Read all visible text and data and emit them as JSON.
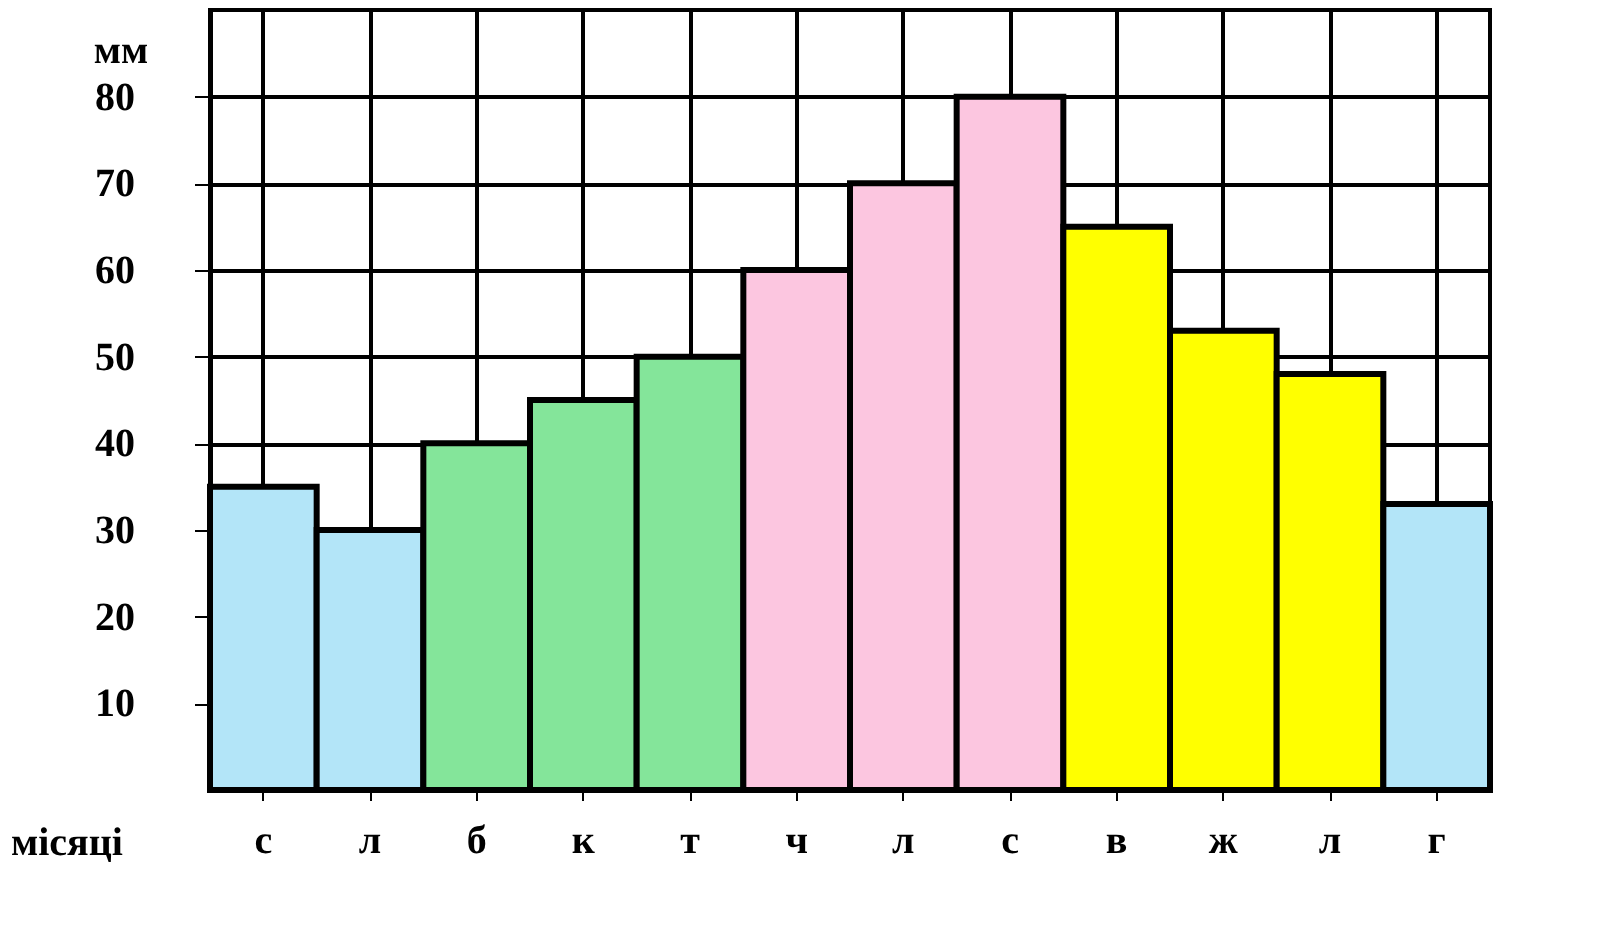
{
  "chart_data": {
    "type": "bar",
    "ylabel": "мм",
    "xlabel": "місяці",
    "categories": [
      "с",
      "л",
      "б",
      "к",
      "т",
      "ч",
      "л",
      "с",
      "в",
      "ж",
      "л",
      "г"
    ],
    "values": [
      35,
      30,
      40,
      45,
      50,
      60,
      70,
      80,
      65,
      53,
      48,
      33
    ],
    "colors": [
      "#b3e5f8",
      "#b3e5f8",
      "#84e59a",
      "#84e59a",
      "#84e59a",
      "#fcc6e0",
      "#fcc6e0",
      "#fcc6e0",
      "#ffff00",
      "#ffff00",
      "#ffff00",
      "#b3e5f8"
    ],
    "ylim": [
      0,
      90
    ],
    "yticks": [
      10,
      20,
      30,
      40,
      50,
      60,
      70,
      80
    ],
    "grid": true,
    "legend": false
  }
}
